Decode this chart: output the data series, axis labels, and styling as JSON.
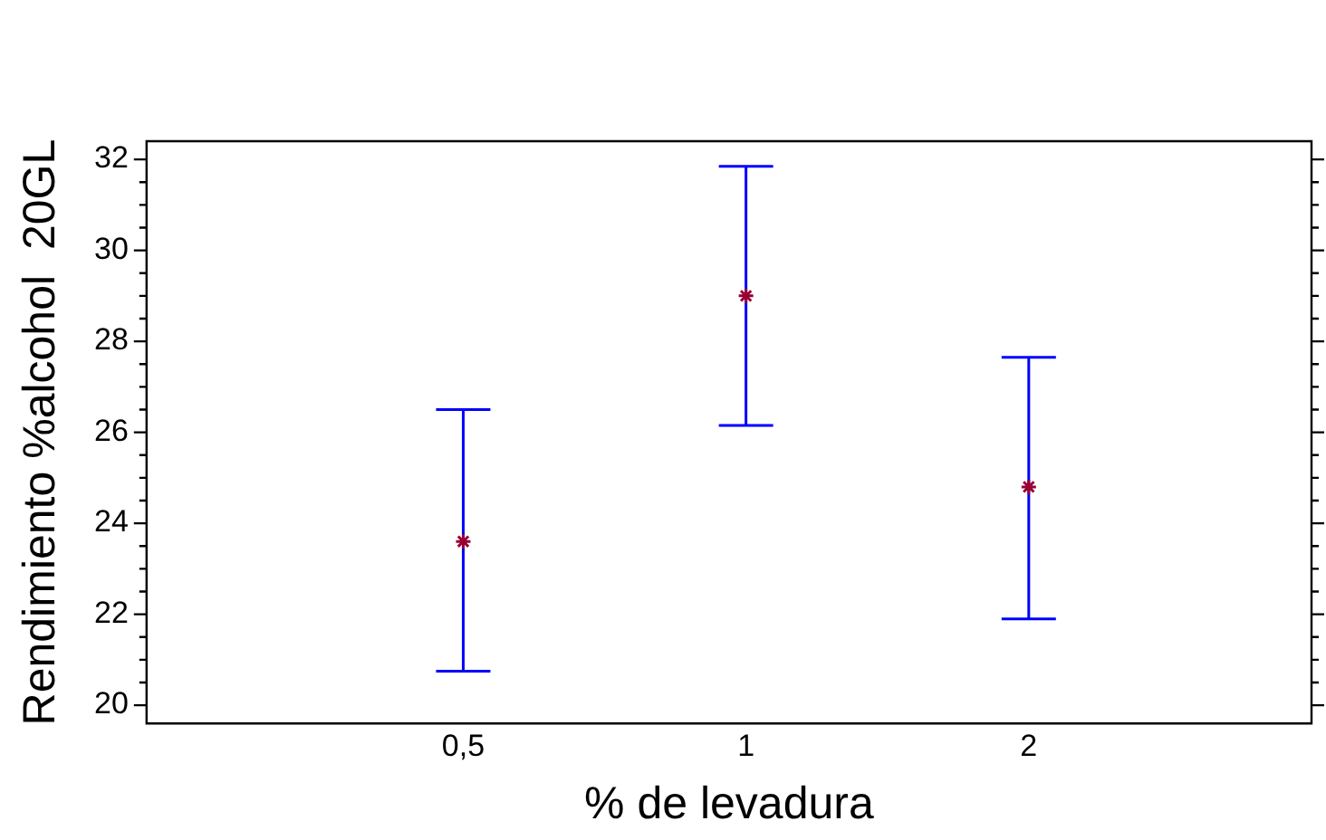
{
  "chart_data": {
    "type": "scatter",
    "xlabel": "% de levadura",
    "ylabel": "Rendimiento %alcohol  20GL",
    "categories": [
      "0,5",
      "1",
      "2"
    ],
    "series": [
      {
        "color": "#990033",
        "values": [
          23.6,
          29.0,
          24.8
        ],
        "errors": [
          [
            20.75,
            26.5
          ],
          [
            26.15,
            31.85
          ],
          [
            21.9,
            27.65
          ]
        ]
      }
    ],
    "ylim": [
      19.6,
      32.4
    ],
    "yticks": [
      20,
      {
        "value": 20.5,
        "label": null
      },
      {
        "value": 21,
        "label": null
      },
      {
        "value": 21.5,
        "label": null
      },
      22,
      {
        "value": 22.5,
        "label": null
      },
      {
        "value": 23,
        "label": null
      },
      {
        "value": 23.5,
        "label": null
      },
      24,
      {
        "value": 24.5,
        "label": null
      },
      {
        "value": 25,
        "label": null
      },
      {
        "value": 25.5,
        "label": null
      },
      26,
      {
        "value": 26.5,
        "label": null
      },
      {
        "value": 27,
        "label": null
      },
      {
        "value": 27.5,
        "label": null
      },
      28,
      {
        "value": 28.5,
        "label": null
      },
      {
        "value": 29,
        "label": null
      },
      {
        "value": 29.5,
        "label": null
      },
      30,
      {
        "value": 30.5,
        "label": null
      },
      {
        "value": 31,
        "label": null
      },
      {
        "value": 31.5,
        "label": null
      },
      32
    ],
    "marker": "cross",
    "grid": false,
    "legend": false
  }
}
